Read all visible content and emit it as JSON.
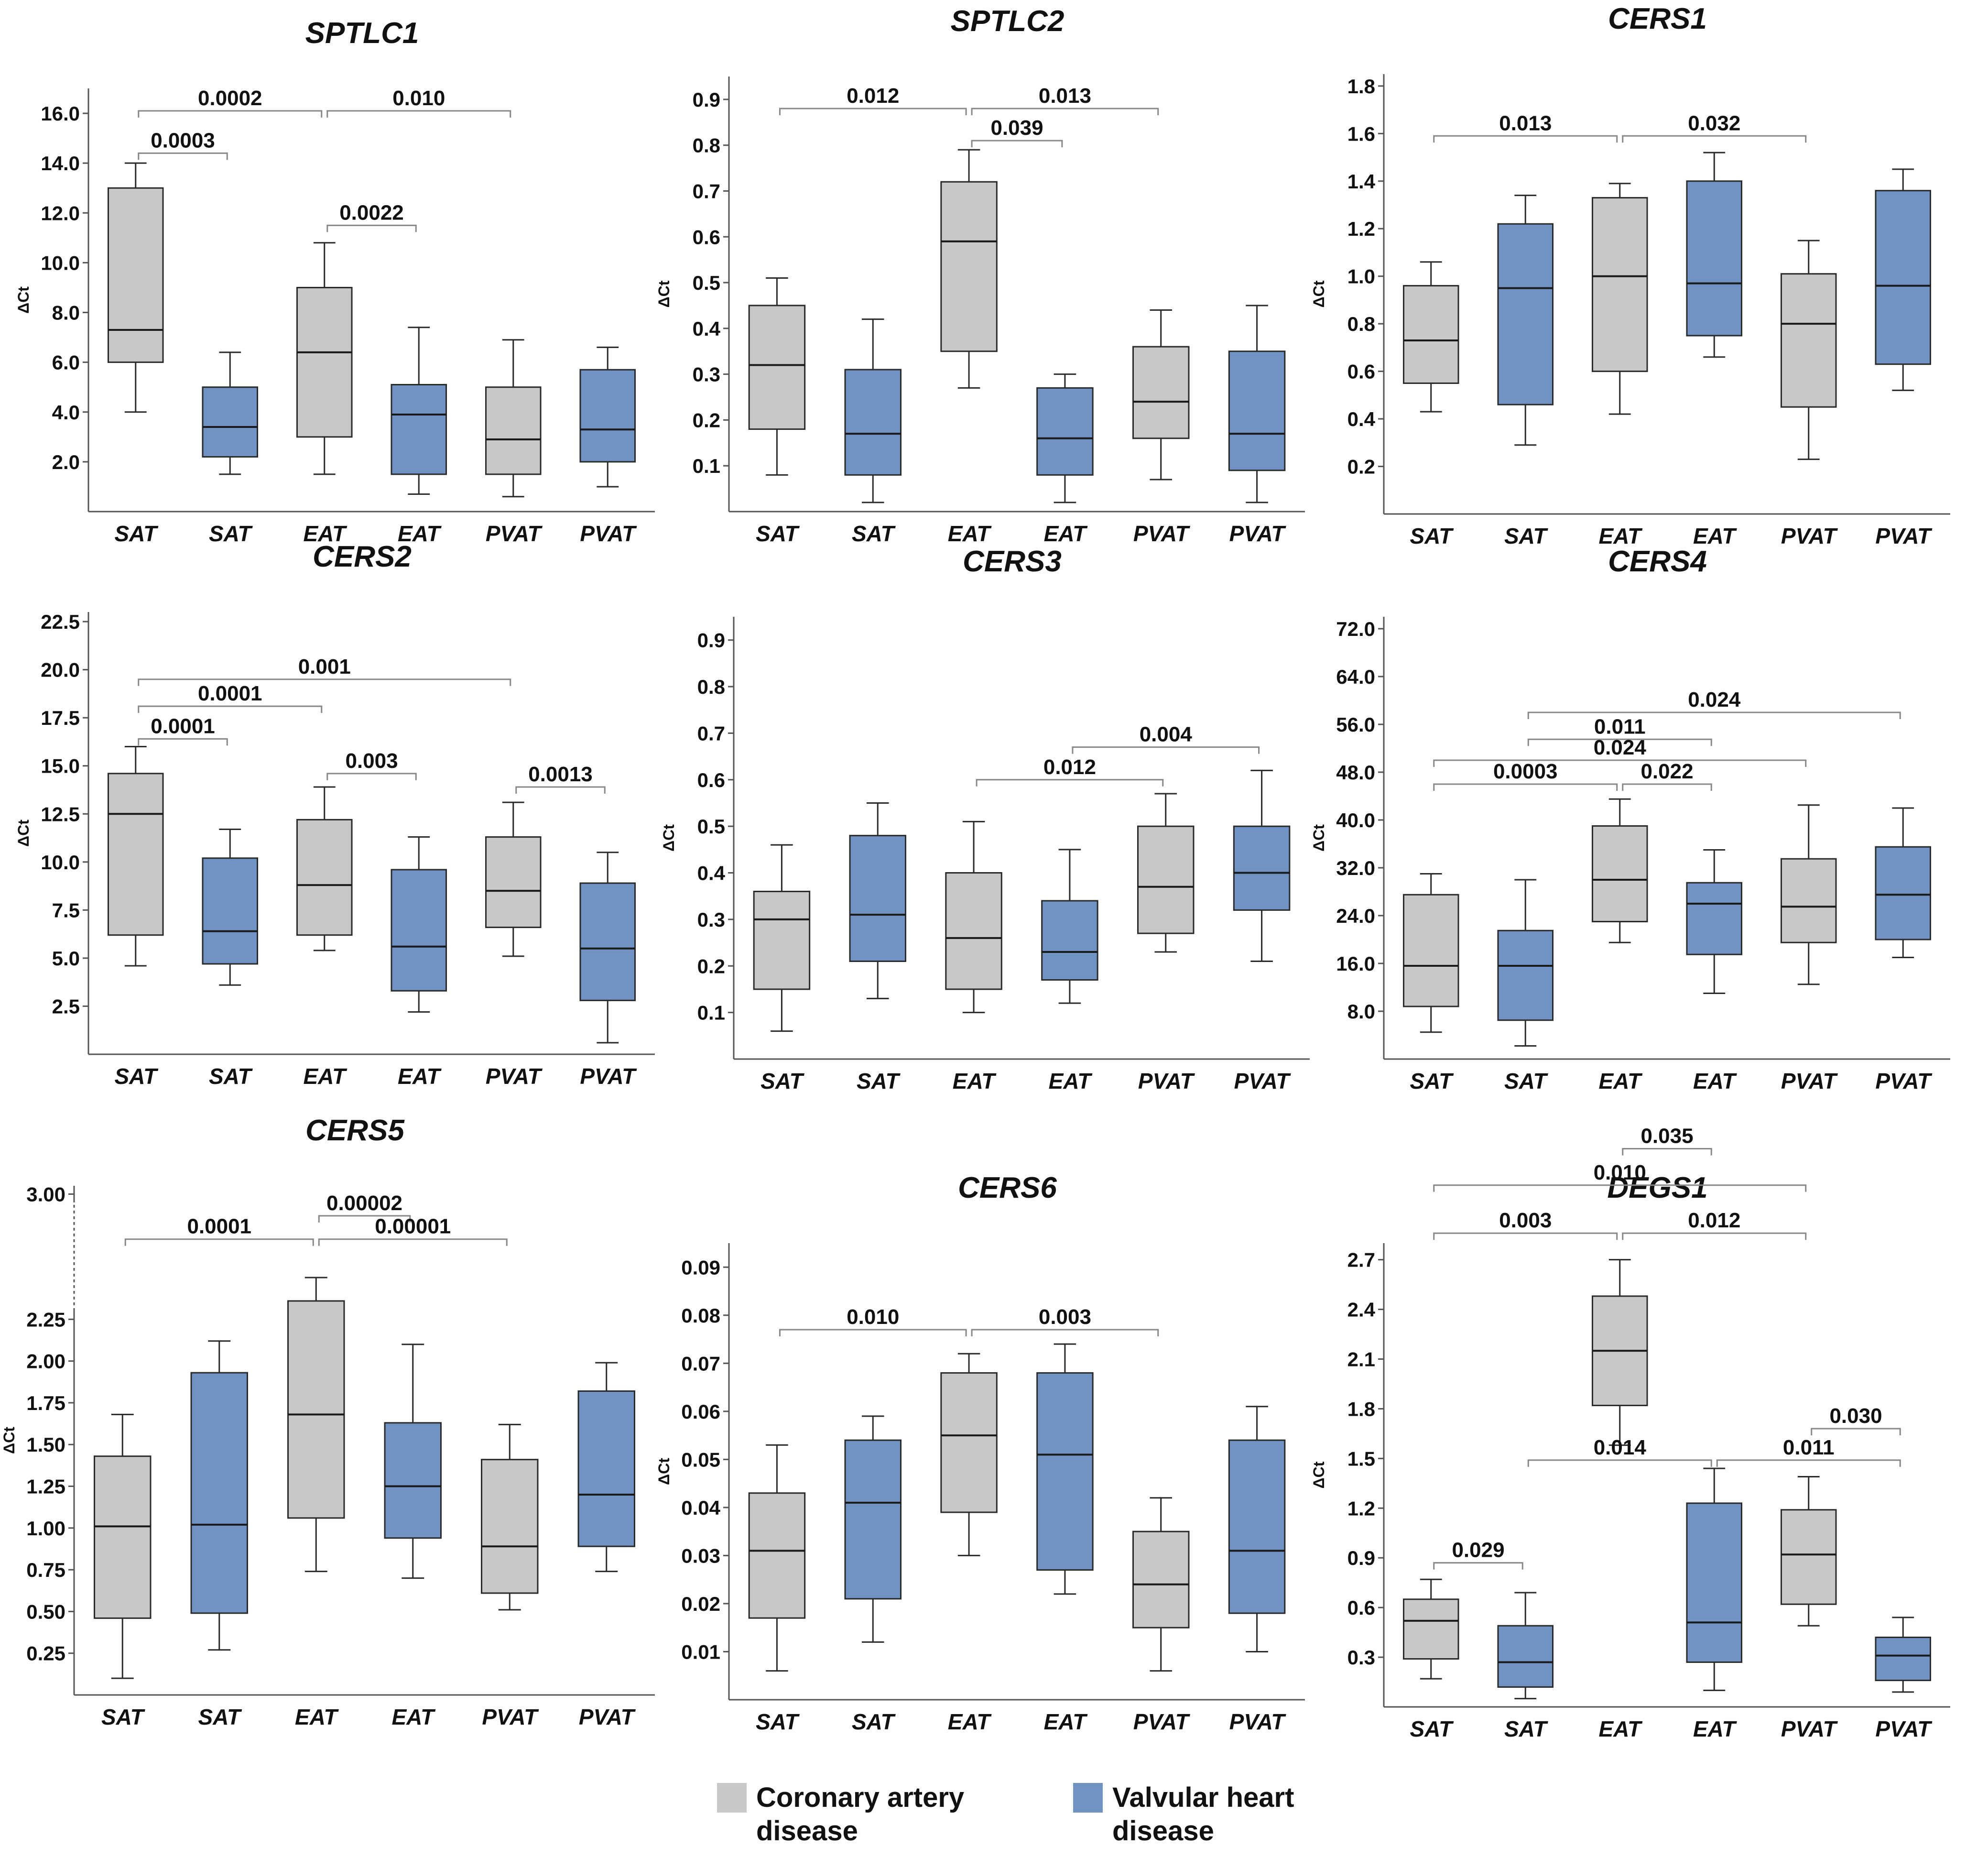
{
  "colors": {
    "cad": "#c8c8c8",
    "vhd": "#7193c3",
    "stroke": "#2a2a2a",
    "axis": "#555555"
  },
  "legend": {
    "cad": "Coronary artery disease",
    "vhd": "Valvular heart disease"
  },
  "chart_data": [
    {
      "type": "box",
      "title": "SPTLC1",
      "ylabel": "ΔCt",
      "categories": [
        "SAT",
        "SAT",
        "EAT",
        "EAT",
        "PVAT",
        "PVAT"
      ],
      "groups": [
        "cad",
        "vhd",
        "cad",
        "vhd",
        "cad",
        "vhd"
      ],
      "ylim": [
        0,
        17
      ],
      "yticks": [
        "2.0",
        "4.0",
        "6.0",
        "8.0",
        "10.0",
        "12.0",
        "14.0",
        "16.0"
      ],
      "boxes": [
        {
          "min": 4.0,
          "q1": 6.0,
          "median": 7.3,
          "q3": 13.0,
          "max": 14.0
        },
        {
          "min": 1.5,
          "q1": 2.2,
          "median": 3.4,
          "q3": 5.0,
          "max": 6.4
        },
        {
          "min": 1.5,
          "q1": 3.0,
          "median": 6.4,
          "q3": 9.0,
          "max": 10.8
        },
        {
          "min": 0.7,
          "q1": 1.5,
          "median": 3.9,
          "q3": 5.1,
          "max": 7.4
        },
        {
          "min": 0.6,
          "q1": 1.5,
          "median": 2.9,
          "q3": 5.0,
          "max": 6.9
        },
        {
          "min": 1.0,
          "q1": 2.0,
          "median": 3.3,
          "q3": 5.7,
          "max": 6.6
        }
      ],
      "brackets": [
        {
          "from": 0,
          "to": 2,
          "level": 16.1,
          "label": "0.0002"
        },
        {
          "from": 2,
          "to": 4,
          "level": 16.1,
          "label": "0.010"
        },
        {
          "from": 0,
          "to": 1,
          "level": 14.4,
          "label": "0.0003"
        },
        {
          "from": 2,
          "to": 3,
          "level": 11.5,
          "label": "0.0022"
        }
      ]
    },
    {
      "type": "box",
      "title": "SPTLC2",
      "ylabel": "ΔCt",
      "categories": [
        "SAT",
        "SAT",
        "EAT",
        "EAT",
        "PVAT",
        "PVAT"
      ],
      "groups": [
        "cad",
        "vhd",
        "cad",
        "vhd",
        "cad",
        "vhd"
      ],
      "ylim": [
        0,
        0.95
      ],
      "yticks": [
        "0.1",
        "0.2",
        "0.3",
        "0.4",
        "0.5",
        "0.6",
        "0.7",
        "0.8",
        "0.9"
      ],
      "boxes": [
        {
          "min": 0.08,
          "q1": 0.18,
          "median": 0.32,
          "q3": 0.45,
          "max": 0.51
        },
        {
          "min": 0.02,
          "q1": 0.08,
          "median": 0.17,
          "q3": 0.31,
          "max": 0.42
        },
        {
          "min": 0.27,
          "q1": 0.35,
          "median": 0.59,
          "q3": 0.72,
          "max": 0.79
        },
        {
          "min": 0.02,
          "q1": 0.08,
          "median": 0.16,
          "q3": 0.27,
          "max": 0.3
        },
        {
          "min": 0.07,
          "q1": 0.16,
          "median": 0.24,
          "q3": 0.36,
          "max": 0.44
        },
        {
          "min": 0.02,
          "q1": 0.09,
          "median": 0.17,
          "q3": 0.35,
          "max": 0.45
        }
      ],
      "brackets": [
        {
          "from": 0,
          "to": 2,
          "level": 0.88,
          "label": "0.012"
        },
        {
          "from": 2,
          "to": 4,
          "level": 0.88,
          "label": "0.013"
        },
        {
          "from": 2,
          "to": 3,
          "level": 0.81,
          "label": "0.039"
        }
      ]
    },
    {
      "type": "box",
      "title": "CERS1",
      "ylabel": "ΔCt",
      "categories": [
        "SAT",
        "SAT",
        "EAT",
        "EAT",
        "PVAT",
        "PVAT"
      ],
      "groups": [
        "cad",
        "vhd",
        "cad",
        "vhd",
        "cad",
        "vhd"
      ],
      "ylim": [
        0,
        1.85
      ],
      "yticks": [
        "0.2",
        "0.4",
        "0.6",
        "0.8",
        "1.0",
        "1.2",
        "1.4",
        "1.6",
        "1.8"
      ],
      "boxes": [
        {
          "min": 0.43,
          "q1": 0.55,
          "median": 0.73,
          "q3": 0.96,
          "max": 1.06
        },
        {
          "min": 0.29,
          "q1": 0.46,
          "median": 0.95,
          "q3": 1.22,
          "max": 1.34
        },
        {
          "min": 0.42,
          "q1": 0.6,
          "median": 1.0,
          "q3": 1.33,
          "max": 1.39
        },
        {
          "min": 0.66,
          "q1": 0.75,
          "median": 0.97,
          "q3": 1.4,
          "max": 1.52
        },
        {
          "min": 0.23,
          "q1": 0.45,
          "median": 0.8,
          "q3": 1.01,
          "max": 1.15
        },
        {
          "min": 0.52,
          "q1": 0.63,
          "median": 0.96,
          "q3": 1.36,
          "max": 1.45
        }
      ],
      "brackets": [
        {
          "from": 0,
          "to": 2,
          "level": 1.59,
          "label": "0.013"
        },
        {
          "from": 2,
          "to": 4,
          "level": 1.59,
          "label": "0.032"
        }
      ]
    },
    {
      "type": "box",
      "title": "CERS2",
      "ylabel": "ΔCt",
      "categories": [
        "SAT",
        "SAT",
        "EAT",
        "EAT",
        "PVAT",
        "PVAT"
      ],
      "groups": [
        "cad",
        "vhd",
        "cad",
        "vhd",
        "cad",
        "vhd"
      ],
      "ylim": [
        0,
        23
      ],
      "yticks": [
        "2.5",
        "5.0",
        "7.5",
        "10.0",
        "12.5",
        "15.0",
        "17.5",
        "20.0",
        "22.5"
      ],
      "boxes": [
        {
          "min": 4.6,
          "q1": 6.2,
          "median": 12.5,
          "q3": 14.6,
          "max": 16.0
        },
        {
          "min": 3.6,
          "q1": 4.7,
          "median": 6.4,
          "q3": 10.2,
          "max": 11.7
        },
        {
          "min": 5.4,
          "q1": 6.2,
          "median": 8.8,
          "q3": 12.2,
          "max": 13.9
        },
        {
          "min": 2.2,
          "q1": 3.3,
          "median": 5.6,
          "q3": 9.6,
          "max": 11.3
        },
        {
          "min": 5.1,
          "q1": 6.6,
          "median": 8.5,
          "q3": 11.3,
          "max": 13.1
        },
        {
          "min": 0.6,
          "q1": 2.8,
          "median": 5.5,
          "q3": 8.9,
          "max": 10.5
        }
      ],
      "brackets": [
        {
          "from": 0,
          "to": 4,
          "level": 19.5,
          "label": "0.001"
        },
        {
          "from": 0,
          "to": 2,
          "level": 18.1,
          "label": "0.0001"
        },
        {
          "from": 0,
          "to": 1,
          "level": 16.4,
          "label": "0.0001"
        },
        {
          "from": 2,
          "to": 3,
          "level": 14.6,
          "label": "0.003"
        },
        {
          "from": 4,
          "to": 5,
          "level": 13.9,
          "label": "0.0013"
        }
      ]
    },
    {
      "type": "box",
      "title": "CERS3",
      "ylabel": "ΔCt",
      "categories": [
        "SAT",
        "SAT",
        "EAT",
        "EAT",
        "PVAT",
        "PVAT"
      ],
      "groups": [
        "cad",
        "vhd",
        "cad",
        "vhd",
        "cad",
        "vhd"
      ],
      "ylim": [
        0,
        0.95
      ],
      "yticks": [
        "0.1",
        "0.2",
        "0.3",
        "0.4",
        "0.5",
        "0.6",
        "0.7",
        "0.8",
        "0.9"
      ],
      "boxes": [
        {
          "min": 0.06,
          "q1": 0.15,
          "median": 0.3,
          "q3": 0.36,
          "max": 0.46
        },
        {
          "min": 0.13,
          "q1": 0.21,
          "median": 0.31,
          "q3": 0.48,
          "max": 0.55
        },
        {
          "min": 0.1,
          "q1": 0.15,
          "median": 0.26,
          "q3": 0.4,
          "max": 0.51
        },
        {
          "min": 0.12,
          "q1": 0.17,
          "median": 0.23,
          "q3": 0.34,
          "max": 0.45
        },
        {
          "min": 0.23,
          "q1": 0.27,
          "median": 0.37,
          "q3": 0.5,
          "max": 0.57
        },
        {
          "min": 0.21,
          "q1": 0.32,
          "median": 0.4,
          "q3": 0.5,
          "max": 0.62
        }
      ],
      "brackets": [
        {
          "from": 3,
          "to": 5,
          "level": 0.67,
          "label": "0.004"
        },
        {
          "from": 2,
          "to": 4,
          "level": 0.6,
          "label": "0.012"
        }
      ]
    },
    {
      "type": "box",
      "title": "CERS4",
      "ylabel": "ΔCt",
      "categories": [
        "SAT",
        "SAT",
        "EAT",
        "EAT",
        "PVAT",
        "PVAT"
      ],
      "groups": [
        "cad",
        "vhd",
        "cad",
        "vhd",
        "cad",
        "vhd"
      ],
      "ylim": [
        0,
        74
      ],
      "yticks": [
        "8.0",
        "16.0",
        "24.0",
        "32.0",
        "40.0",
        "48.0",
        "56.0",
        "64.0",
        "72.0"
      ],
      "boxes": [
        {
          "min": 4.5,
          "q1": 8.8,
          "median": 15.6,
          "q3": 27.5,
          "max": 31.0
        },
        {
          "min": 2.2,
          "q1": 6.5,
          "median": 15.6,
          "q3": 21.5,
          "max": 30.0
        },
        {
          "min": 19.5,
          "q1": 23.0,
          "median": 30.0,
          "q3": 39.0,
          "max": 43.5
        },
        {
          "min": 11.0,
          "q1": 17.5,
          "median": 26.0,
          "q3": 29.5,
          "max": 35.0
        },
        {
          "min": 12.5,
          "q1": 19.5,
          "median": 25.5,
          "q3": 33.5,
          "max": 42.5
        },
        {
          "min": 17.0,
          "q1": 20.0,
          "median": 27.5,
          "q3": 35.5,
          "max": 42.0
        }
      ],
      "brackets": [
        {
          "from": 1,
          "to": 5,
          "level": 58.0,
          "label": "0.024"
        },
        {
          "from": 1,
          "to": 3,
          "level": 53.5,
          "label": "0.011"
        },
        {
          "from": 0,
          "to": 4,
          "level": 50.0,
          "label": "0.024"
        },
        {
          "from": 0,
          "to": 2,
          "level": 46.0,
          "label": "0.0003"
        },
        {
          "from": 2,
          "to": 3,
          "level": 46.0,
          "label": "0.022"
        }
      ]
    },
    {
      "type": "box",
      "title": "CERS5",
      "ylabel": "ΔCt",
      "categories": [
        "SAT",
        "SAT",
        "EAT",
        "EAT",
        "PVAT",
        "PVAT"
      ],
      "groups": [
        "cad",
        "vhd",
        "cad",
        "vhd",
        "cad",
        "vhd"
      ],
      "ylim": [
        0,
        3.05
      ],
      "yticks": [
        "0.25",
        "0.50",
        "0.75",
        "1.00",
        "1.25",
        "1.50",
        "1.75",
        "2.00",
        "2.25",
        "3.00"
      ],
      "axis_break": "2.25–3.00",
      "boxes": [
        {
          "min": 0.1,
          "q1": 0.46,
          "median": 1.01,
          "q3": 1.43,
          "max": 1.68
        },
        {
          "min": 0.27,
          "q1": 0.49,
          "median": 1.02,
          "q3": 1.93,
          "max": 2.12
        },
        {
          "min": 0.74,
          "q1": 1.06,
          "median": 1.68,
          "q3": 2.36,
          "max": 2.5
        },
        {
          "min": 0.7,
          "q1": 0.94,
          "median": 1.25,
          "q3": 1.63,
          "max": 2.1
        },
        {
          "min": 0.51,
          "q1": 0.61,
          "median": 0.89,
          "q3": 1.41,
          "max": 1.62
        },
        {
          "min": 0.74,
          "q1": 0.89,
          "median": 1.2,
          "q3": 1.82,
          "max": 1.99
        }
      ],
      "brackets": [
        {
          "from": 2,
          "to": 3,
          "level": 2.87,
          "label": "0.00002"
        },
        {
          "from": 0,
          "to": 2,
          "level": 2.73,
          "label": "0.0001"
        },
        {
          "from": 2,
          "to": 4,
          "level": 2.73,
          "label": "0.00001"
        }
      ]
    },
    {
      "type": "box",
      "title": "CERS6",
      "ylabel": "ΔCt",
      "categories": [
        "SAT",
        "SAT",
        "EAT",
        "EAT",
        "PVAT",
        "PVAT"
      ],
      "groups": [
        "cad",
        "vhd",
        "cad",
        "vhd",
        "cad",
        "vhd"
      ],
      "ylim": [
        0,
        0.095
      ],
      "yticks": [
        "0.01",
        "0.02",
        "0.03",
        "0.04",
        "0.05",
        "0.06",
        "0.07",
        "0.08",
        "0.09"
      ],
      "boxes": [
        {
          "min": 0.006,
          "q1": 0.017,
          "median": 0.031,
          "q3": 0.043,
          "max": 0.053
        },
        {
          "min": 0.012,
          "q1": 0.021,
          "median": 0.041,
          "q3": 0.054,
          "max": 0.059
        },
        {
          "min": 0.03,
          "q1": 0.039,
          "median": 0.055,
          "q3": 0.068,
          "max": 0.072
        },
        {
          "min": 0.022,
          "q1": 0.027,
          "median": 0.051,
          "q3": 0.068,
          "max": 0.074
        },
        {
          "min": 0.006,
          "q1": 0.015,
          "median": 0.024,
          "q3": 0.035,
          "max": 0.042
        },
        {
          "min": 0.01,
          "q1": 0.018,
          "median": 0.031,
          "q3": 0.054,
          "max": 0.061
        }
      ],
      "brackets": [
        {
          "from": 0,
          "to": 2,
          "level": 0.077,
          "label": "0.010"
        },
        {
          "from": 2,
          "to": 4,
          "level": 0.077,
          "label": "0.003"
        }
      ]
    },
    {
      "type": "box",
      "title": "DEGS1",
      "ylabel": "ΔCt",
      "categories": [
        "SAT",
        "SAT",
        "EAT",
        "EAT",
        "PVAT",
        "PVAT"
      ],
      "groups": [
        "cad",
        "vhd",
        "cad",
        "vhd",
        "cad",
        "vhd"
      ],
      "ylim": [
        0,
        2.8
      ],
      "yticks": [
        "0.3",
        "0.6",
        "0.9",
        "1.2",
        "1.5",
        "1.8",
        "2.1",
        "2.4",
        "2.7"
      ],
      "boxes": [
        {
          "min": 0.17,
          "q1": 0.29,
          "median": 0.52,
          "q3": 0.65,
          "max": 0.77
        },
        {
          "min": 0.05,
          "q1": 0.12,
          "median": 0.27,
          "q3": 0.49,
          "max": 0.69
        },
        {
          "min": 1.58,
          "q1": 1.82,
          "median": 2.15,
          "q3": 2.48,
          "max": 2.7
        },
        {
          "min": 0.1,
          "q1": 0.27,
          "median": 0.51,
          "q3": 1.23,
          "max": 1.44
        },
        {
          "min": 0.49,
          "q1": 0.62,
          "median": 0.92,
          "q3": 1.19,
          "max": 1.39
        },
        {
          "min": 0.09,
          "q1": 0.16,
          "median": 0.31,
          "q3": 0.42,
          "max": 0.54
        }
      ],
      "brackets": [
        {
          "from": 2,
          "to": 3,
          "level": 3.37,
          "label": "0.035"
        },
        {
          "from": 0,
          "to": 4,
          "level": 3.15,
          "label": "0.010"
        },
        {
          "from": 0,
          "to": 2,
          "level": 2.86,
          "label": "0.003"
        },
        {
          "from": 2,
          "to": 4,
          "level": 2.86,
          "label": "0.012"
        },
        {
          "from": 1,
          "to": 3,
          "level": 1.49,
          "label": "0.014"
        },
        {
          "from": 3,
          "to": 5,
          "level": 1.49,
          "label": "0.011"
        },
        {
          "from": 4,
          "to": 5,
          "level": 1.68,
          "label": "0.030"
        },
        {
          "from": 0,
          "to": 1,
          "level": 0.87,
          "label": "0.029"
        }
      ]
    }
  ]
}
